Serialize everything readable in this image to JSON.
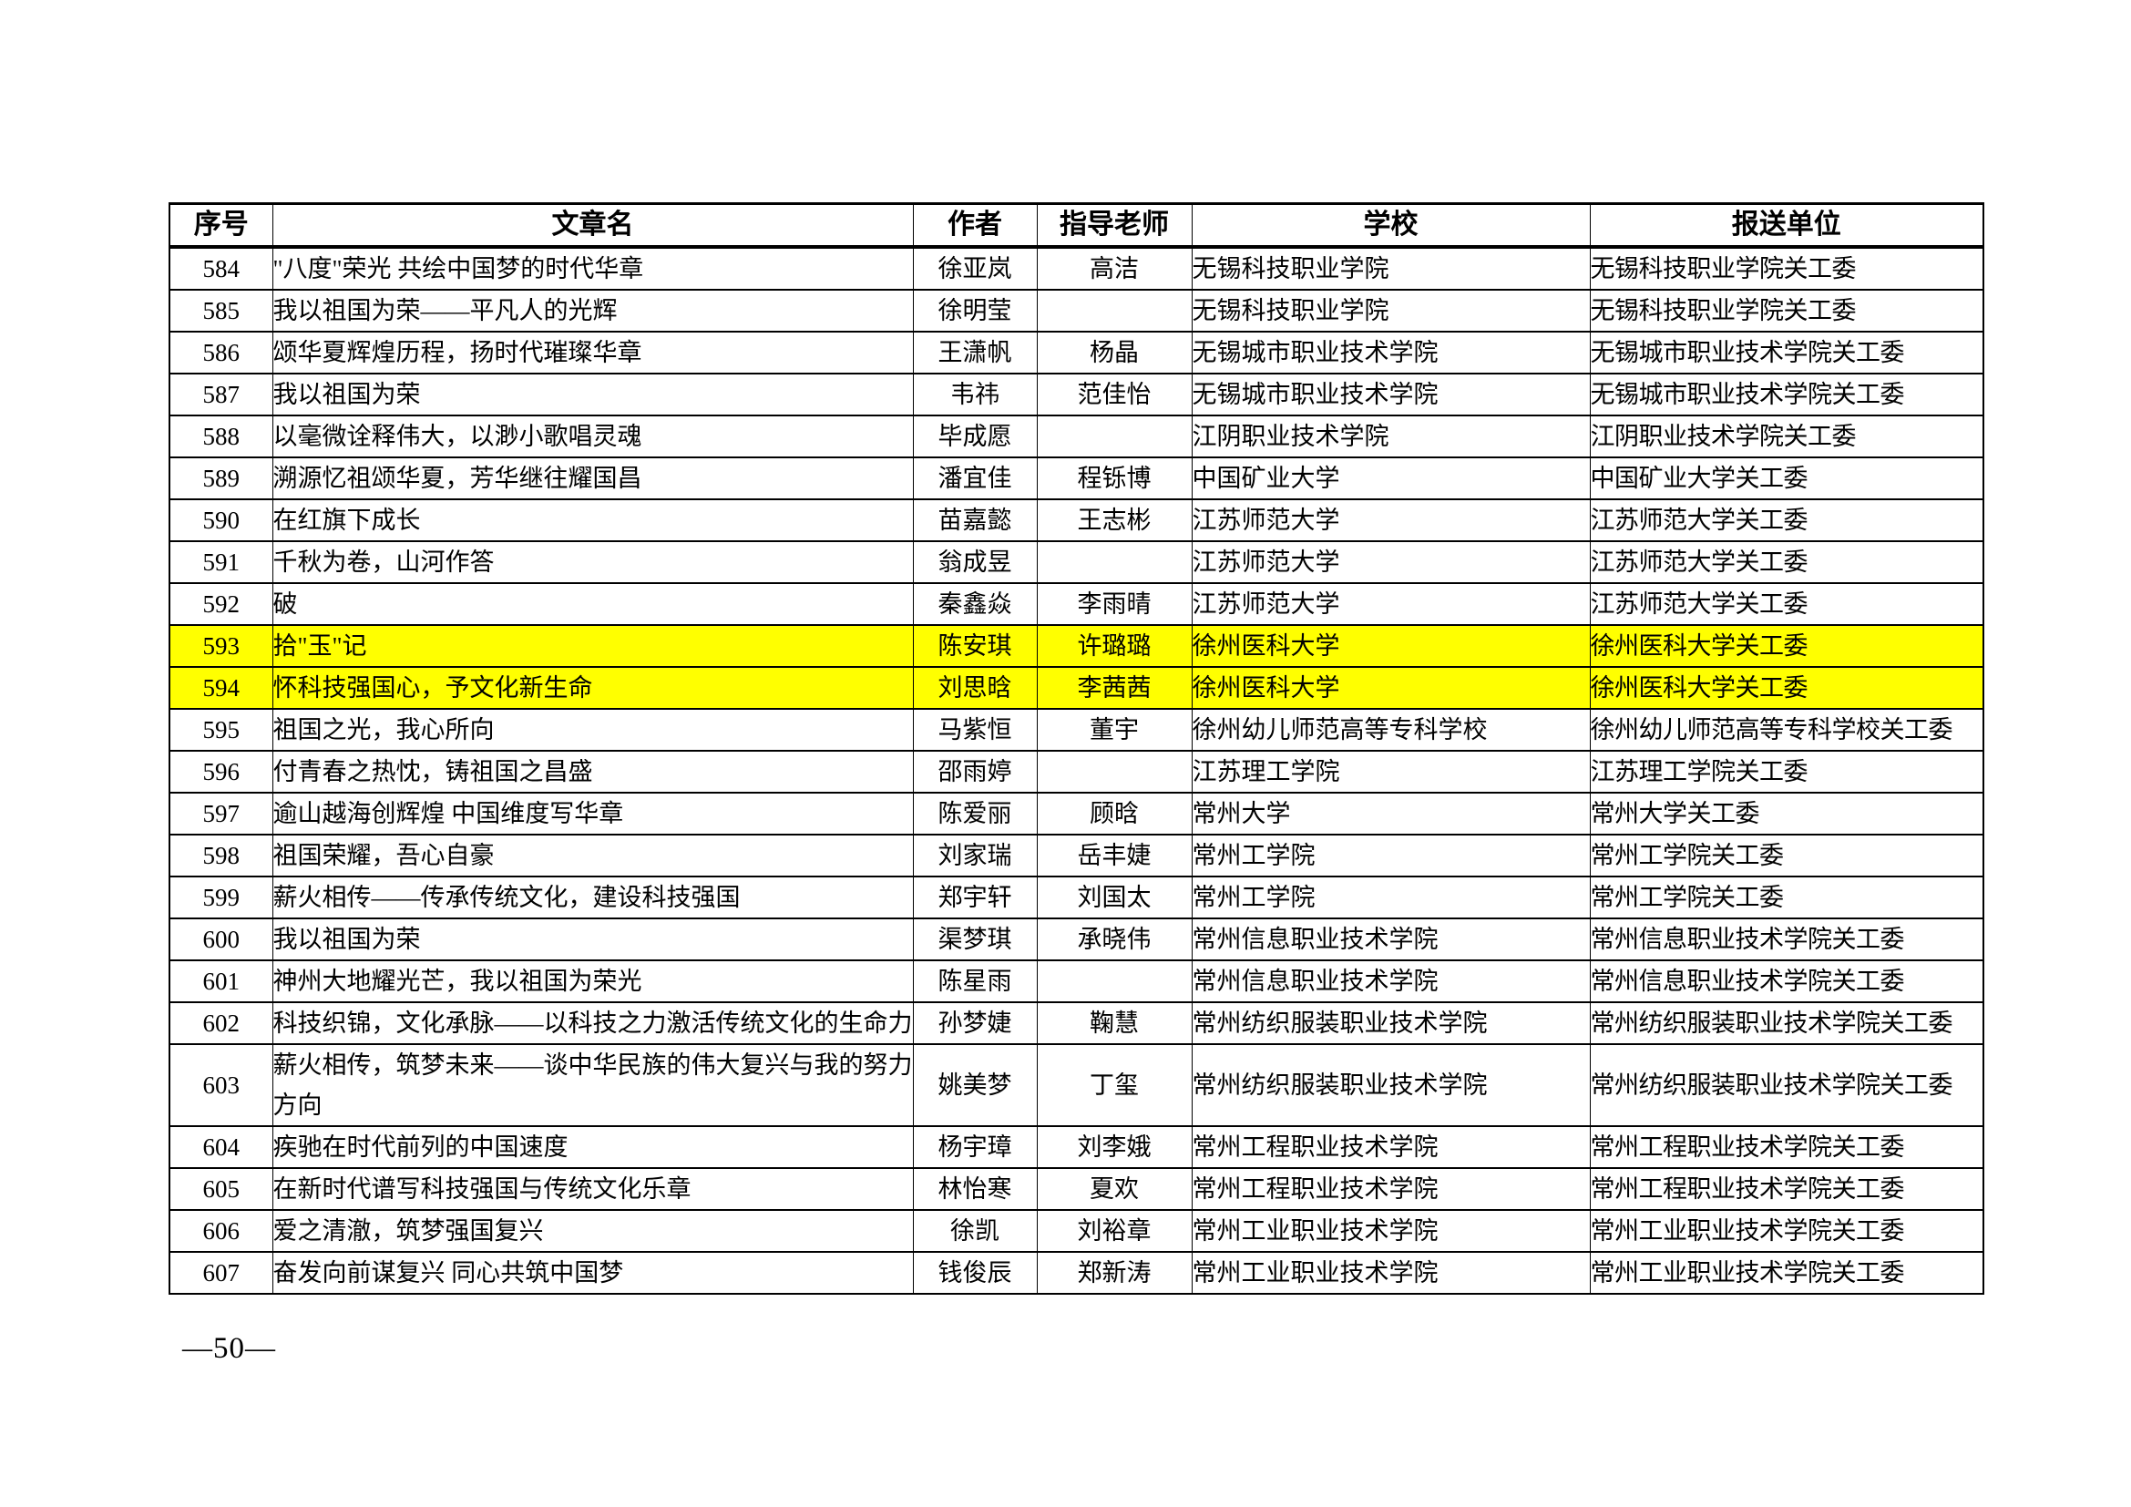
{
  "colors": {
    "highlight": "#ffff00",
    "border": "#000000",
    "background": "#ffffff"
  },
  "page": {
    "number_label": "—50—"
  },
  "table": {
    "headers": [
      "序号",
      "文章名",
      "作者",
      "指导老师",
      "学校",
      "报送单位"
    ],
    "rows": [
      {
        "no": "584",
        "title": "\"八度\"荣光 共绘中国梦的时代华章",
        "author": "徐亚岚",
        "advisor": "高洁",
        "school": "无锡科技职业学院",
        "unit": "无锡科技职业学院关工委",
        "highlight": false
      },
      {
        "no": "585",
        "title": "我以祖国为荣——平凡人的光辉",
        "author": "徐明莹",
        "advisor": "",
        "school": "无锡科技职业学院",
        "unit": "无锡科技职业学院关工委",
        "highlight": false
      },
      {
        "no": "586",
        "title": "颂华夏辉煌历程，扬时代璀璨华章",
        "author": "王潇帆",
        "advisor": "杨晶",
        "school": "无锡城市职业技术学院",
        "unit": "无锡城市职业技术学院关工委",
        "highlight": false
      },
      {
        "no": "587",
        "title": "我以祖国为荣",
        "author": "韦祎",
        "advisor": "范佳怡",
        "school": "无锡城市职业技术学院",
        "unit": "无锡城市职业技术学院关工委",
        "highlight": false
      },
      {
        "no": "588",
        "title": "以毫微诠释伟大，以渺小歌唱灵魂",
        "author": "毕成愿",
        "advisor": "",
        "school": "江阴职业技术学院",
        "unit": "江阴职业技术学院关工委",
        "highlight": false
      },
      {
        "no": "589",
        "title": "溯源忆祖颂华夏，芳华继往耀国昌",
        "author": "潘宜佳",
        "advisor": "程铄博",
        "school": "中国矿业大学",
        "unit": "中国矿业大学关工委",
        "highlight": false
      },
      {
        "no": "590",
        "title": "在红旗下成长",
        "author": "苗嘉懿",
        "advisor": "王志彬",
        "school": "江苏师范大学",
        "unit": "江苏师范大学关工委",
        "highlight": false
      },
      {
        "no": "591",
        "title": "千秋为卷，山河作答",
        "author": "翁成昱",
        "advisor": "",
        "school": "江苏师范大学",
        "unit": "江苏师范大学关工委",
        "highlight": false
      },
      {
        "no": "592",
        "title": "破",
        "author": "秦鑫焱",
        "advisor": "李雨晴",
        "school": "江苏师范大学",
        "unit": "江苏师范大学关工委",
        "highlight": false
      },
      {
        "no": "593",
        "title": "拾\"玉\"记",
        "author": "陈安琪",
        "advisor": "许璐璐",
        "school": "徐州医科大学",
        "unit": "徐州医科大学关工委",
        "highlight": true
      },
      {
        "no": "594",
        "title": "怀科技强国心，予文化新生命",
        "author": "刘思晗",
        "advisor": "李茜茜",
        "school": "徐州医科大学",
        "unit": "徐州医科大学关工委",
        "highlight": true
      },
      {
        "no": "595",
        "title": "祖国之光，我心所向",
        "author": "马紫恒",
        "advisor": "董宇",
        "school": "徐州幼儿师范高等专科学校",
        "unit": "徐州幼儿师范高等专科学校关工委",
        "highlight": false
      },
      {
        "no": "596",
        "title": "付青春之热忱，铸祖国之昌盛",
        "author": "邵雨婷",
        "advisor": "",
        "school": "江苏理工学院",
        "unit": "江苏理工学院关工委",
        "highlight": false
      },
      {
        "no": "597",
        "title": "逾山越海创辉煌 中国维度写华章",
        "author": "陈爱丽",
        "advisor": "顾晗",
        "school": "常州大学",
        "unit": "常州大学关工委",
        "highlight": false
      },
      {
        "no": "598",
        "title": "祖国荣耀，吾心自豪",
        "author": "刘家瑞",
        "advisor": "岳丰婕",
        "school": "常州工学院",
        "unit": "常州工学院关工委",
        "highlight": false
      },
      {
        "no": "599",
        "title": "薪火相传——传承传统文化，建设科技强国",
        "author": "郑宇轩",
        "advisor": "刘国太",
        "school": "常州工学院",
        "unit": "常州工学院关工委",
        "highlight": false
      },
      {
        "no": "600",
        "title": "我以祖国为荣",
        "author": "渠梦琪",
        "advisor": "承晓伟",
        "school": "常州信息职业技术学院",
        "unit": "常州信息职业技术学院关工委",
        "highlight": false
      },
      {
        "no": "601",
        "title": "神州大地耀光芒，我以祖国为荣光",
        "author": "陈星雨",
        "advisor": "",
        "school": "常州信息职业技术学院",
        "unit": "常州信息职业技术学院关工委",
        "highlight": false
      },
      {
        "no": "602",
        "title": "科技织锦，文化承脉——以科技之力激活传统文化的生命力",
        "author": "孙梦婕",
        "advisor": "鞠慧",
        "school": "常州纺织服装职业技术学院",
        "unit": "常州纺织服装职业技术学院关工委",
        "highlight": false
      },
      {
        "no": "603",
        "title": "薪火相传，筑梦未来——谈中华民族的伟大复兴与我的努力方向",
        "author": "姚美梦",
        "advisor": "丁玺",
        "school": "常州纺织服装职业技术学院",
        "unit": "常州纺织服装职业技术学院关工委",
        "highlight": false
      },
      {
        "no": "604",
        "title": "疾驰在时代前列的中国速度",
        "author": "杨宇璋",
        "advisor": "刘李娥",
        "school": "常州工程职业技术学院",
        "unit": "常州工程职业技术学院关工委",
        "highlight": false
      },
      {
        "no": "605",
        "title": "在新时代谱写科技强国与传统文化乐章",
        "author": "林怡寒",
        "advisor": "夏欢",
        "school": "常州工程职业技术学院",
        "unit": "常州工程职业技术学院关工委",
        "highlight": false
      },
      {
        "no": "606",
        "title": "爱之清澈，筑梦强国复兴",
        "author": "徐凯",
        "advisor": "刘裕章",
        "school": "常州工业职业技术学院",
        "unit": "常州工业职业技术学院关工委",
        "highlight": false
      },
      {
        "no": "607",
        "title": "奋发向前谋复兴 同心共筑中国梦",
        "author": "钱俊辰",
        "advisor": "郑新涛",
        "school": "常州工业职业技术学院",
        "unit": "常州工业职业技术学院关工委",
        "highlight": false
      }
    ]
  }
}
